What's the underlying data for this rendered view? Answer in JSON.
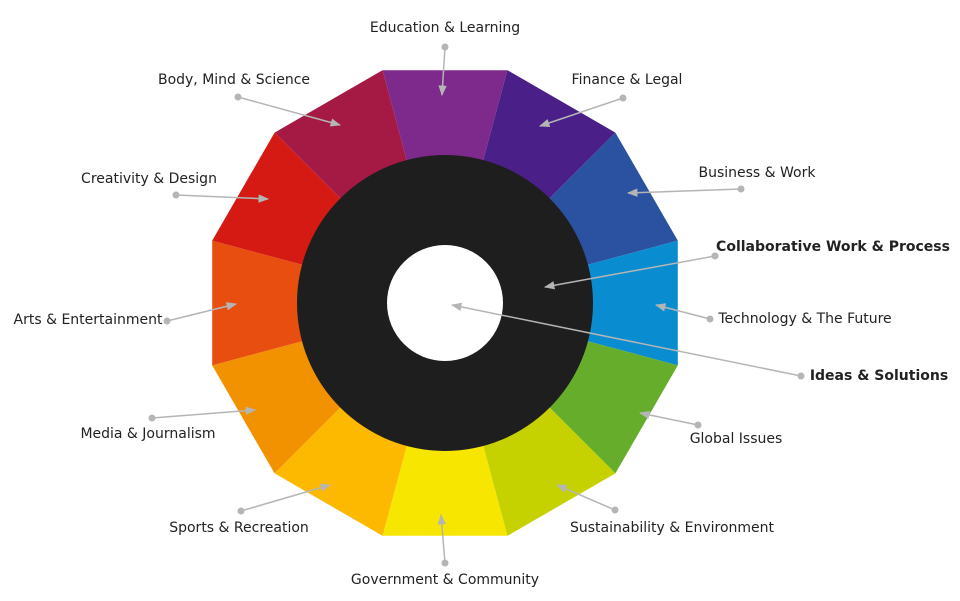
{
  "labels": [
    "Education & Learning",
    "Finance & Legal",
    "Business & Work",
    "Collaborative Work & Process",
    "Technology & The Future",
    "Ideas & Solutions",
    "Global Issues",
    "Sustainability & Environment",
    "Government & Community",
    "Sports & Recreation",
    "Media & Journalism",
    "Arts & Entertainment",
    "Creativity & Design",
    "Body, Mind & Science"
  ]
}
